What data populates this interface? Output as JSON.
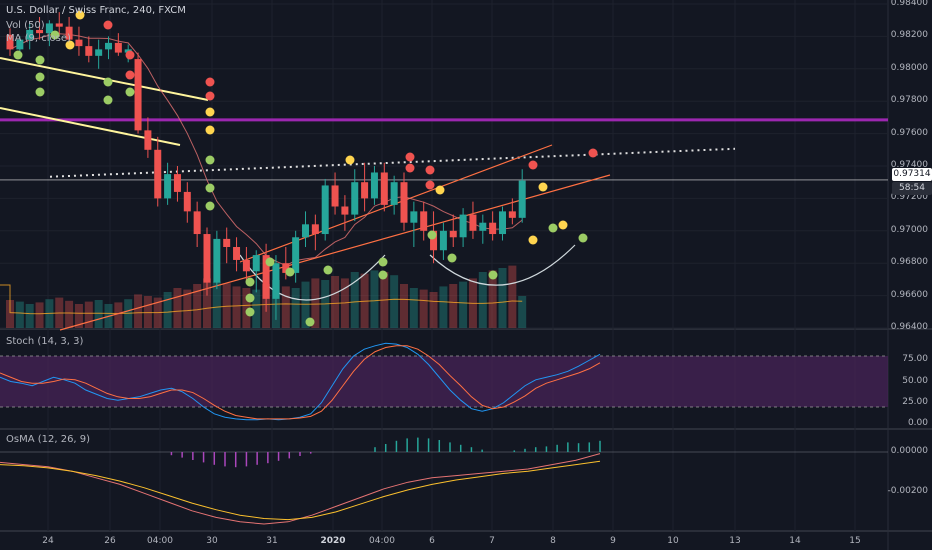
{
  "symbol_title": "U.S. Dollar / Swiss Franc, 240, FXCM",
  "volume_legend": "Vol (50)",
  "ma_legend": "MA (9, close)",
  "stoch_legend": "Stoch (14, 3, 3)",
  "osma_legend": "OsMA (12, 26, 9)",
  "price_axis": [
    "0.98400",
    "0.98200",
    "0.98000",
    "0.97800",
    "0.97600",
    "0.97400",
    "0.97200",
    "0.97000",
    "0.96800",
    "0.96600",
    "0.96400"
  ],
  "current_price": "0.97314",
  "countdown": "58:54",
  "stoch_axis": [
    "75.00",
    "50.00",
    "25.00",
    "0.00"
  ],
  "osma_axis": [
    "0.00000",
    "-0.00200"
  ],
  "x_axis": [
    {
      "label": "24",
      "bold": false
    },
    {
      "label": "26",
      "bold": false
    },
    {
      "label": "04:00",
      "bold": false
    },
    {
      "label": "30",
      "bold": false
    },
    {
      "label": "31",
      "bold": false
    },
    {
      "label": "2020",
      "bold": true
    },
    {
      "label": "04:00",
      "bold": false
    },
    {
      "label": "6",
      "bold": false
    },
    {
      "label": "7",
      "bold": false
    },
    {
      "label": "8",
      "bold": false
    },
    {
      "label": "9",
      "bold": false
    },
    {
      "label": "10",
      "bold": false
    },
    {
      "label": "13",
      "bold": false
    },
    {
      "label": "14",
      "bold": false
    },
    {
      "label": "15",
      "bold": false
    }
  ],
  "colors": {
    "background": "#131722",
    "up": "#26a69a",
    "down": "#ef5350",
    "dot_green": "#9ccc65",
    "dot_red": "#ef5350",
    "dot_yellow": "#ffd54f",
    "support_line": "#9c27b0",
    "trend_line": "#ff7043",
    "stoch_band": "#4a235a"
  },
  "chart_data": {
    "type": "candlestick",
    "price_range": [
      0.964,
      0.984
    ],
    "resistance_level": 0.97685,
    "dotted_level": 0.9742,
    "current_price": 0.97314,
    "candles": [
      [
        0.9821,
        0.9825,
        0.9808,
        0.9812
      ],
      [
        0.9812,
        0.982,
        0.9806,
        0.9818
      ],
      [
        0.9818,
        0.9828,
        0.9812,
        0.9824
      ],
      [
        0.9824,
        0.9832,
        0.9818,
        0.9822
      ],
      [
        0.9822,
        0.983,
        0.9814,
        0.9828
      ],
      [
        0.9828,
        0.9835,
        0.982,
        0.9826
      ],
      [
        0.9826,
        0.9832,
        0.9815,
        0.9818
      ],
      [
        0.9818,
        0.9826,
        0.9808,
        0.9814
      ],
      [
        0.9814,
        0.982,
        0.9804,
        0.9808
      ],
      [
        0.9808,
        0.9818,
        0.98,
        0.9812
      ],
      [
        0.9812,
        0.982,
        0.9806,
        0.9816
      ],
      [
        0.9816,
        0.9822,
        0.9808,
        0.981
      ],
      [
        0.981,
        0.9815,
        0.9804,
        0.9812
      ],
      [
        0.9806,
        0.981,
        0.976,
        0.9762
      ],
      [
        0.9762,
        0.977,
        0.9745,
        0.975
      ],
      [
        0.975,
        0.9758,
        0.9715,
        0.972
      ],
      [
        0.972,
        0.9742,
        0.9716,
        0.9735
      ],
      [
        0.9735,
        0.974,
        0.9718,
        0.9724
      ],
      [
        0.9724,
        0.973,
        0.9705,
        0.9712
      ],
      [
        0.9712,
        0.9718,
        0.969,
        0.9698
      ],
      [
        0.9698,
        0.9702,
        0.966,
        0.9668
      ],
      [
        0.9668,
        0.97,
        0.9664,
        0.9695
      ],
      [
        0.9695,
        0.9702,
        0.968,
        0.969
      ],
      [
        0.969,
        0.9696,
        0.9675,
        0.9682
      ],
      [
        0.9682,
        0.969,
        0.9668,
        0.9675
      ],
      [
        0.9675,
        0.9688,
        0.9662,
        0.9685
      ],
      [
        0.9685,
        0.9692,
        0.965,
        0.9658
      ],
      [
        0.9658,
        0.9685,
        0.9645,
        0.968
      ],
      [
        0.968,
        0.969,
        0.967,
        0.9674
      ],
      [
        0.9674,
        0.97,
        0.9668,
        0.9696
      ],
      [
        0.9696,
        0.9712,
        0.969,
        0.9704
      ],
      [
        0.9704,
        0.971,
        0.9688,
        0.9698
      ],
      [
        0.9698,
        0.9732,
        0.9694,
        0.9728
      ],
      [
        0.9728,
        0.9736,
        0.971,
        0.9715
      ],
      [
        0.9715,
        0.9722,
        0.97,
        0.971
      ],
      [
        0.971,
        0.9738,
        0.9706,
        0.973
      ],
      [
        0.973,
        0.9742,
        0.9712,
        0.972
      ],
      [
        0.972,
        0.974,
        0.9716,
        0.9736
      ],
      [
        0.9736,
        0.9742,
        0.9712,
        0.9716
      ],
      [
        0.9716,
        0.9734,
        0.971,
        0.973
      ],
      [
        0.973,
        0.9736,
        0.97,
        0.9705
      ],
      [
        0.9705,
        0.9718,
        0.969,
        0.9712
      ],
      [
        0.9712,
        0.9718,
        0.9694,
        0.97
      ],
      [
        0.97,
        0.9712,
        0.968,
        0.9688
      ],
      [
        0.9688,
        0.9705,
        0.9682,
        0.97
      ],
      [
        0.97,
        0.971,
        0.969,
        0.9696
      ],
      [
        0.9696,
        0.9714,
        0.969,
        0.971
      ],
      [
        0.971,
        0.9718,
        0.9695,
        0.97
      ],
      [
        0.97,
        0.971,
        0.9692,
        0.9705
      ],
      [
        0.9705,
        0.9712,
        0.9694,
        0.9698
      ],
      [
        0.9698,
        0.9715,
        0.9694,
        0.9712
      ],
      [
        0.9712,
        0.972,
        0.9704,
        0.9708
      ],
      [
        0.9708,
        0.9738,
        0.9705,
        0.9731
      ]
    ],
    "volume": [
      0.35,
      0.33,
      0.3,
      0.32,
      0.36,
      0.38,
      0.34,
      0.3,
      0.33,
      0.35,
      0.3,
      0.32,
      0.36,
      0.42,
      0.4,
      0.38,
      0.45,
      0.5,
      0.48,
      0.55,
      0.62,
      0.58,
      0.56,
      0.52,
      0.5,
      0.48,
      0.55,
      0.6,
      0.52,
      0.5,
      0.58,
      0.62,
      0.6,
      0.65,
      0.62,
      0.7,
      0.68,
      0.72,
      0.7,
      0.66,
      0.55,
      0.5,
      0.48,
      0.45,
      0.52,
      0.55,
      0.58,
      0.62,
      0.7,
      0.72,
      0.75,
      0.78,
      0.4
    ],
    "stoch_k": [
      55,
      50,
      48,
      45,
      50,
      55,
      52,
      48,
      40,
      35,
      30,
      28,
      30,
      32,
      36,
      40,
      42,
      38,
      30,
      20,
      12,
      8,
      6,
      5,
      5,
      6,
      5,
      6,
      8,
      12,
      25,
      45,
      65,
      80,
      88,
      92,
      95,
      94,
      90,
      82,
      70,
      55,
      40,
      28,
      18,
      15,
      18,
      25,
      35,
      45,
      52,
      55,
      58,
      62,
      68,
      75,
      82
    ],
    "stoch_d": [
      60,
      55,
      50,
      48,
      48,
      50,
      53,
      52,
      48,
      42,
      36,
      32,
      30,
      30,
      32,
      36,
      40,
      40,
      37,
      30,
      22,
      15,
      10,
      8,
      6,
      6,
      6,
      6,
      7,
      9,
      15,
      28,
      45,
      62,
      76,
      85,
      90,
      92,
      92,
      88,
      80,
      70,
      57,
      45,
      32,
      22,
      18,
      20,
      26,
      33,
      42,
      48,
      52,
      56,
      60,
      65,
      72
    ],
    "osma_hist": [
      0,
      0,
      0,
      0,
      0,
      0,
      0,
      0,
      0,
      0,
      0,
      0,
      0,
      0,
      0,
      0,
      -0.2,
      -0.35,
      -0.5,
      -0.65,
      -0.8,
      -0.9,
      -0.95,
      -0.9,
      -0.8,
      -0.7,
      -0.55,
      -0.4,
      -0.25,
      -0.1,
      0,
      0,
      0,
      0,
      0,
      0.3,
      0.5,
      0.7,
      0.85,
      0.9,
      0.85,
      0.75,
      0.6,
      0.45,
      0.3,
      0.15,
      0,
      0,
      0.1,
      0.2,
      0.3,
      0.35,
      0.45,
      0.6,
      0.55,
      0.6,
      0.7
    ]
  }
}
